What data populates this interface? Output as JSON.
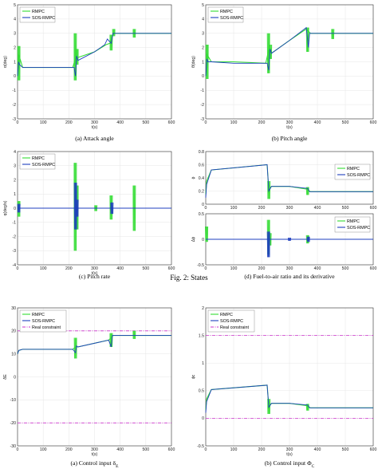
{
  "figure_captions": {
    "states": "Fig. 2: States"
  },
  "colors": {
    "rmpc": "#33dd33",
    "sos": "#1f3fbf",
    "constraint": "#cc33cc",
    "grid": "#e6e6e6",
    "axis": "#333333"
  },
  "chart_data": [
    {
      "id": "attack",
      "type": "line",
      "caption": "(a)  Attack angle",
      "xlabel": "t(s)",
      "ylabel": "α(deg)",
      "xlim": [
        0,
        600
      ],
      "ylim": [
        -3,
        5
      ],
      "xticks": [
        0,
        100,
        200,
        300,
        400,
        500,
        600
      ],
      "yticks": [
        -3,
        -2,
        -1,
        0,
        1,
        2,
        3,
        4,
        5
      ],
      "grid": true,
      "legend": "top-left",
      "series": [
        {
          "name": "RMPC",
          "color_key": "rmpc",
          "x": [
            0,
            5,
            20,
            100,
            215,
            225,
            235,
            300,
            345,
            360,
            375,
            450,
            600
          ],
          "y": [
            0,
            1.5,
            0.6,
            0.6,
            0.6,
            1.2,
            1.3,
            1.7,
            2.2,
            2.3,
            3.0,
            3.0,
            3.0
          ],
          "bursts": [
            {
              "x": 5,
              "lo": -0.3,
              "hi": 2.1
            },
            {
              "x": 225,
              "lo": -0.3,
              "hi": 3.0
            },
            {
              "x": 232,
              "lo": 0.8,
              "hi": 1.9
            },
            {
              "x": 365,
              "lo": 1.8,
              "hi": 2.9
            },
            {
              "x": 375,
              "lo": 2.8,
              "hi": 3.3
            },
            {
              "x": 455,
              "lo": 2.7,
              "hi": 3.3
            }
          ]
        },
        {
          "name": "SOS-RMPC",
          "color_key": "sos",
          "x": [
            0,
            4,
            8,
            20,
            100,
            220,
            226,
            230,
            236,
            300,
            340,
            350,
            365,
            372,
            380,
            600
          ],
          "y": [
            0,
            1.0,
            0.8,
            0.6,
            0.6,
            0.6,
            0.0,
            1.4,
            1.1,
            1.7,
            2.2,
            2.6,
            2.3,
            3.0,
            3.0,
            3.0
          ]
        }
      ]
    },
    {
      "id": "pitch_angle",
      "type": "line",
      "caption": "(b)  Pitch angle",
      "xlabel": "t(s)",
      "ylabel": "θ(deg)",
      "xlim": [
        0,
        600
      ],
      "ylim": [
        -3,
        5
      ],
      "xticks": [
        0,
        100,
        200,
        300,
        400,
        500,
        600
      ],
      "yticks": [
        -3,
        -2,
        -1,
        0,
        1,
        2,
        3,
        4,
        5
      ],
      "grid": true,
      "legend": "top-left",
      "series": [
        {
          "name": "RMPC",
          "color_key": "rmpc",
          "x": [
            0,
            5,
            20,
            100,
            215,
            225,
            235,
            300,
            360,
            375,
            450,
            600
          ],
          "y": [
            0,
            1.5,
            1.0,
            1.0,
            0.9,
            1.8,
            1.6,
            2.5,
            3.3,
            3.0,
            3.0,
            3.0
          ],
          "bursts": [
            {
              "x": 5,
              "lo": -0.2,
              "hi": 2.2
            },
            {
              "x": 225,
              "lo": 0.2,
              "hi": 3.0
            },
            {
              "x": 232,
              "lo": 1.2,
              "hi": 2.2
            },
            {
              "x": 365,
              "lo": 1.7,
              "hi": 3.4
            },
            {
              "x": 455,
              "lo": 2.6,
              "hi": 3.3
            }
          ]
        },
        {
          "name": "SOS-RMPC",
          "color_key": "sos",
          "x": [
            0,
            4,
            8,
            20,
            100,
            220,
            226,
            230,
            236,
            300,
            360,
            368,
            372,
            380,
            600
          ],
          "y": [
            0,
            1.2,
            1.0,
            1.0,
            0.9,
            0.9,
            0.4,
            1.9,
            1.6,
            2.5,
            3.4,
            2.0,
            3.0,
            3.0,
            3.0
          ]
        }
      ]
    },
    {
      "id": "pitch_rate",
      "type": "line",
      "caption": "(c)  Pitch rate",
      "xlabel": "t(s)",
      "ylabel": "q(deg/s)",
      "xlim": [
        0,
        600
      ],
      "ylim": [
        -4,
        4
      ],
      "xticks": [
        0,
        100,
        200,
        300,
        400,
        500,
        600
      ],
      "yticks": [
        -4,
        -3,
        -2,
        -1,
        0,
        1,
        2,
        3,
        4
      ],
      "grid": true,
      "legend": "top-left",
      "series": [
        {
          "name": "RMPC",
          "color_key": "rmpc",
          "x": [
            0,
            600
          ],
          "y": [
            0,
            0
          ],
          "bursts": [
            {
              "x": 5,
              "lo": -0.6,
              "hi": 0.5
            },
            {
              "x": 225,
              "lo": -3.0,
              "hi": 3.2
            },
            {
              "x": 232,
              "lo": -1.5,
              "hi": 1.6
            },
            {
              "x": 305,
              "lo": -0.2,
              "hi": 0.2
            },
            {
              "x": 365,
              "lo": -0.8,
              "hi": 0.9
            },
            {
              "x": 455,
              "lo": -1.6,
              "hi": 1.6
            }
          ]
        },
        {
          "name": "SOS-RMPC",
          "color_key": "sos",
          "x": [
            0,
            600
          ],
          "y": [
            0,
            0
          ],
          "bursts": [
            {
              "x": 5,
              "lo": -0.3,
              "hi": 0.3
            },
            {
              "x": 226,
              "lo": -1.5,
              "hi": 1.8
            },
            {
              "x": 232,
              "lo": -0.6,
              "hi": 0.6
            },
            {
              "x": 368,
              "lo": -0.4,
              "hi": 0.4
            }
          ]
        }
      ]
    },
    {
      "id": "fuel_ratio",
      "type": "line",
      "caption": "(d)  Fuel-to-air ratio and its derivative",
      "xlabel": "",
      "ylabel": "ϕ",
      "xlim": [
        0,
        600
      ],
      "ylim": [
        0,
        0.8
      ],
      "xticks": [
        0,
        100,
        200,
        300,
        400,
        500,
        600
      ],
      "yticks": [
        0,
        0.2,
        0.4,
        0.6,
        0.8
      ],
      "grid": true,
      "legend": "right",
      "series": [
        {
          "name": "RMPC",
          "color_key": "rmpc",
          "x": [
            0,
            3,
            20,
            220,
            226,
            235,
            300,
            360,
            375,
            600
          ],
          "y": [
            0.15,
            0.35,
            0.52,
            0.6,
            0.2,
            0.27,
            0.27,
            0.23,
            0.19,
            0.19
          ],
          "bursts": [
            {
              "x": 226,
              "lo": 0.08,
              "hi": 0.35
            },
            {
              "x": 365,
              "lo": 0.14,
              "hi": 0.26
            }
          ]
        },
        {
          "name": "SOS-RMPC",
          "color_key": "sos",
          "x": [
            0,
            3,
            20,
            220,
            226,
            235,
            300,
            365,
            372,
            600
          ],
          "y": [
            0.1,
            0.3,
            0.52,
            0.6,
            0.2,
            0.27,
            0.27,
            0.24,
            0.19,
            0.19
          ]
        }
      ]
    },
    {
      "id": "fuel_ratio_derivative",
      "type": "line",
      "caption": "",
      "xlabel": "",
      "ylabel": "Δϕ",
      "xlim": [
        0,
        600
      ],
      "ylim": [
        -0.5,
        0.5
      ],
      "xticks": [
        0,
        100,
        200,
        300,
        400,
        500,
        600
      ],
      "yticks": [
        -0.5,
        0,
        0.5
      ],
      "grid": true,
      "legend": "right",
      "series": [
        {
          "name": "RMPC",
          "color_key": "rmpc",
          "x": [
            0,
            600
          ],
          "y": [
            0,
            0
          ],
          "bursts": [
            {
              "x": 3,
              "lo": -0.05,
              "hi": 0.25
            },
            {
              "x": 225,
              "lo": -0.3,
              "hi": 0.38
            },
            {
              "x": 230,
              "lo": -0.12,
              "hi": 0.12
            },
            {
              "x": 365,
              "lo": -0.08,
              "hi": 0.08
            }
          ]
        },
        {
          "name": "SOS-RMPC",
          "color_key": "sos",
          "x": [
            0,
            600
          ],
          "y": [
            0,
            0
          ],
          "bursts": [
            {
              "x": 225,
              "lo": -0.35,
              "hi": 0.15
            },
            {
              "x": 300,
              "lo": -0.03,
              "hi": 0.03
            },
            {
              "x": 368,
              "lo": -0.05,
              "hi": 0.05
            }
          ]
        }
      ]
    },
    {
      "id": "control_delta_e",
      "type": "line",
      "caption": "(a)  Control input δ",
      "caption_sub": "E",
      "xlabel": "t(s)",
      "ylabel": "δE",
      "xlim": [
        0,
        600
      ],
      "ylim": [
        -30,
        30
      ],
      "xticks": [
        0,
        100,
        200,
        300,
        400,
        500,
        600
      ],
      "yticks": [
        -30,
        -20,
        -10,
        0,
        10,
        20,
        30
      ],
      "grid": true,
      "legend": "top-left",
      "constraint": {
        "name": "Real constraint",
        "color_key": "constraint",
        "values": [
          -20,
          20
        ]
      },
      "series": [
        {
          "name": "RMPC",
          "color_key": "rmpc",
          "x": [
            0,
            5,
            20,
            215,
            226,
            235,
            355,
            365,
            372,
            450,
            600
          ],
          "y": [
            10,
            11.5,
            12,
            12,
            13,
            13,
            16,
            17,
            18,
            18,
            18
          ],
          "bursts": [
            {
              "x": 226,
              "lo": 8,
              "hi": 17
            },
            {
              "x": 365,
              "lo": 13,
              "hi": 19
            },
            {
              "x": 455,
              "lo": 16.5,
              "hi": 20
            }
          ]
        },
        {
          "name": "SOS-RMPC",
          "color_key": "sos",
          "x": [
            0,
            5,
            20,
            215,
            226,
            230,
            235,
            355,
            365,
            370,
            600
          ],
          "y": [
            10,
            11.5,
            12,
            12,
            10.5,
            13.5,
            13,
            16,
            13,
            18,
            18
          ]
        }
      ]
    },
    {
      "id": "control_phi_c",
      "type": "line",
      "caption": "(b)  Control input Φ",
      "caption_sub": "C",
      "xlabel": "t(s)",
      "ylabel": "ϕc",
      "xlim": [
        0,
        600
      ],
      "ylim": [
        -0.5,
        2
      ],
      "xticks": [
        0,
        100,
        200,
        300,
        400,
        500,
        600
      ],
      "yticks": [
        -0.5,
        0,
        0.5,
        1,
        1.5,
        2
      ],
      "grid": true,
      "legend": "top-left",
      "constraint": {
        "name": "Real constraint",
        "color_key": "constraint",
        "values": [
          0,
          1.5
        ]
      },
      "series": [
        {
          "name": "RMPC",
          "color_key": "rmpc",
          "x": [
            0,
            3,
            20,
            220,
            226,
            235,
            300,
            360,
            375,
            600
          ],
          "y": [
            0.15,
            0.35,
            0.52,
            0.6,
            0.2,
            0.27,
            0.27,
            0.23,
            0.19,
            0.19
          ],
          "bursts": [
            {
              "x": 226,
              "lo": 0.08,
              "hi": 0.35
            },
            {
              "x": 365,
              "lo": 0.14,
              "hi": 0.26
            }
          ]
        },
        {
          "name": "SOS-RMPC",
          "color_key": "sos",
          "x": [
            0,
            3,
            20,
            220,
            226,
            235,
            300,
            365,
            372,
            600
          ],
          "y": [
            0.1,
            0.3,
            0.52,
            0.6,
            0.2,
            0.27,
            0.27,
            0.24,
            0.19,
            0.19
          ]
        }
      ]
    }
  ]
}
